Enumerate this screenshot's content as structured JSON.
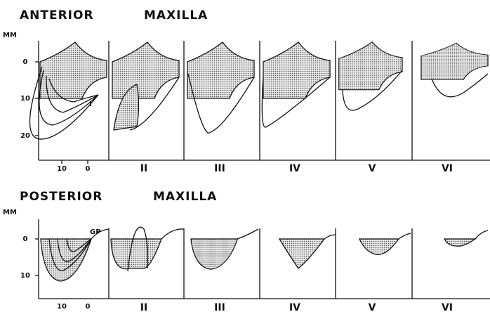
{
  "top": {
    "title_left": "ANTERIOR",
    "title_right": "MAXILLA",
    "unit": "MM",
    "y_labels": [
      "0",
      "10",
      "20"
    ],
    "x_labels": [
      "10",
      "0"
    ],
    "point_label": "I",
    "panels": [
      "II",
      "III",
      "IV",
      "V",
      "VI"
    ]
  },
  "bottom": {
    "title_left": "POSTERIOR",
    "title_right": "MAXILLA",
    "unit": "MM",
    "y_labels": [
      "0",
      "10"
    ],
    "x_labels": [
      "10",
      "0"
    ],
    "point_label": "GP",
    "panels": [
      "II",
      "III",
      "IV",
      "V",
      "VI"
    ]
  }
}
